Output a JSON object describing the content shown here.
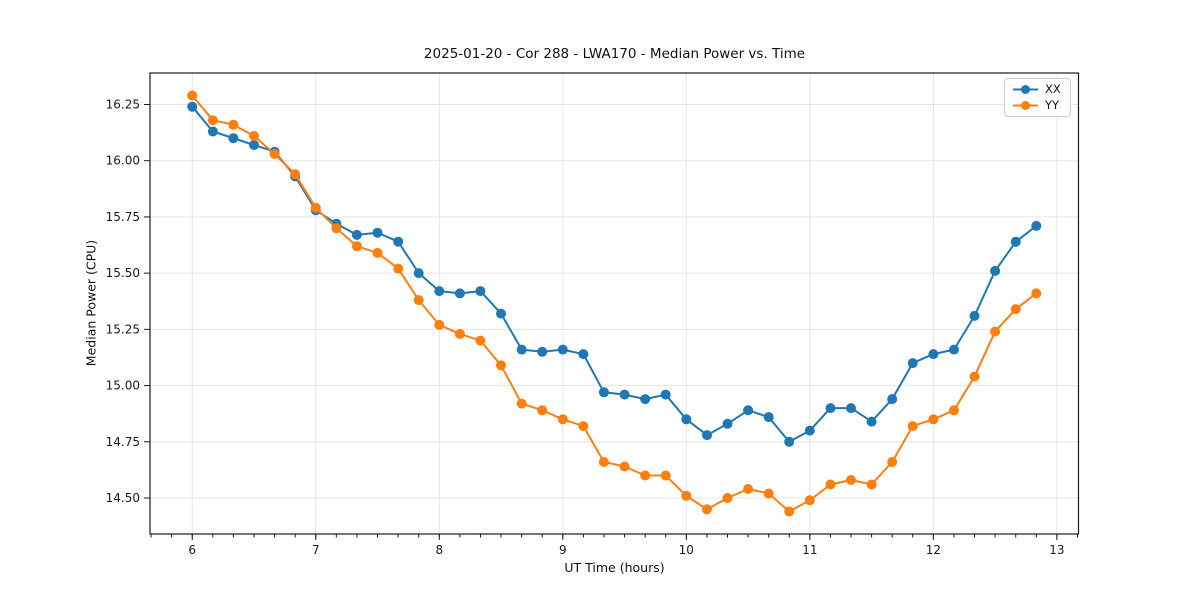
{
  "chart_data": {
    "type": "line",
    "title": "2025-01-20 - Cor 288 - LWA170 - Median Power vs. Time",
    "xlabel": "UT Time (hours)",
    "ylabel": "Median Power (CPU)",
    "x": [
      6.0,
      6.167,
      6.333,
      6.5,
      6.667,
      6.833,
      7.0,
      7.167,
      7.333,
      7.5,
      7.667,
      7.833,
      8.0,
      8.167,
      8.333,
      8.5,
      8.667,
      8.833,
      9.0,
      9.167,
      9.333,
      9.5,
      9.667,
      9.833,
      10.0,
      10.167,
      10.333,
      10.5,
      10.667,
      10.833,
      11.0,
      11.167,
      11.333,
      11.5,
      11.667,
      11.833,
      12.0,
      12.167,
      12.333,
      12.5,
      12.667,
      12.833
    ],
    "series": [
      {
        "name": "XX",
        "color": "#1f77b4",
        "values": [
          16.24,
          16.13,
          16.1,
          16.07,
          16.04,
          15.93,
          15.78,
          15.72,
          15.67,
          15.68,
          15.64,
          15.5,
          15.42,
          15.41,
          15.42,
          15.32,
          15.16,
          15.15,
          15.16,
          15.14,
          14.97,
          14.96,
          14.94,
          14.96,
          14.85,
          14.78,
          14.83,
          14.89,
          14.86,
          14.75,
          14.8,
          14.9,
          14.9,
          14.84,
          14.94,
          15.1,
          15.14,
          15.16,
          15.31,
          15.51,
          15.64,
          15.71
        ]
      },
      {
        "name": "YY",
        "color": "#ff7f0e",
        "values": [
          16.29,
          16.18,
          16.16,
          16.11,
          16.03,
          15.94,
          15.79,
          15.7,
          15.62,
          15.59,
          15.52,
          15.38,
          15.27,
          15.23,
          15.2,
          15.09,
          14.92,
          14.89,
          14.85,
          14.82,
          14.66,
          14.64,
          14.6,
          14.6,
          14.51,
          14.45,
          14.5,
          14.54,
          14.52,
          14.44,
          14.49,
          14.56,
          14.58,
          14.56,
          14.66,
          14.82,
          14.85,
          14.89,
          15.04,
          15.24,
          15.34,
          15.41
        ]
      }
    ],
    "xlim": [
      5.658,
      13.175
    ],
    "ylim": [
      14.34,
      16.39
    ],
    "x_major_ticks": [
      6,
      7,
      8,
      9,
      10,
      11,
      12,
      13
    ],
    "y_major_ticks": [
      14.5,
      14.75,
      15.0,
      15.25,
      15.5,
      15.75,
      16.0,
      16.25
    ],
    "x_minor_tick_step": 0.166667,
    "grid": true,
    "grid_color": "#e5e5e5",
    "legend_position": "upper right",
    "marker": "o",
    "marker_size": 5,
    "line_width": 2
  }
}
